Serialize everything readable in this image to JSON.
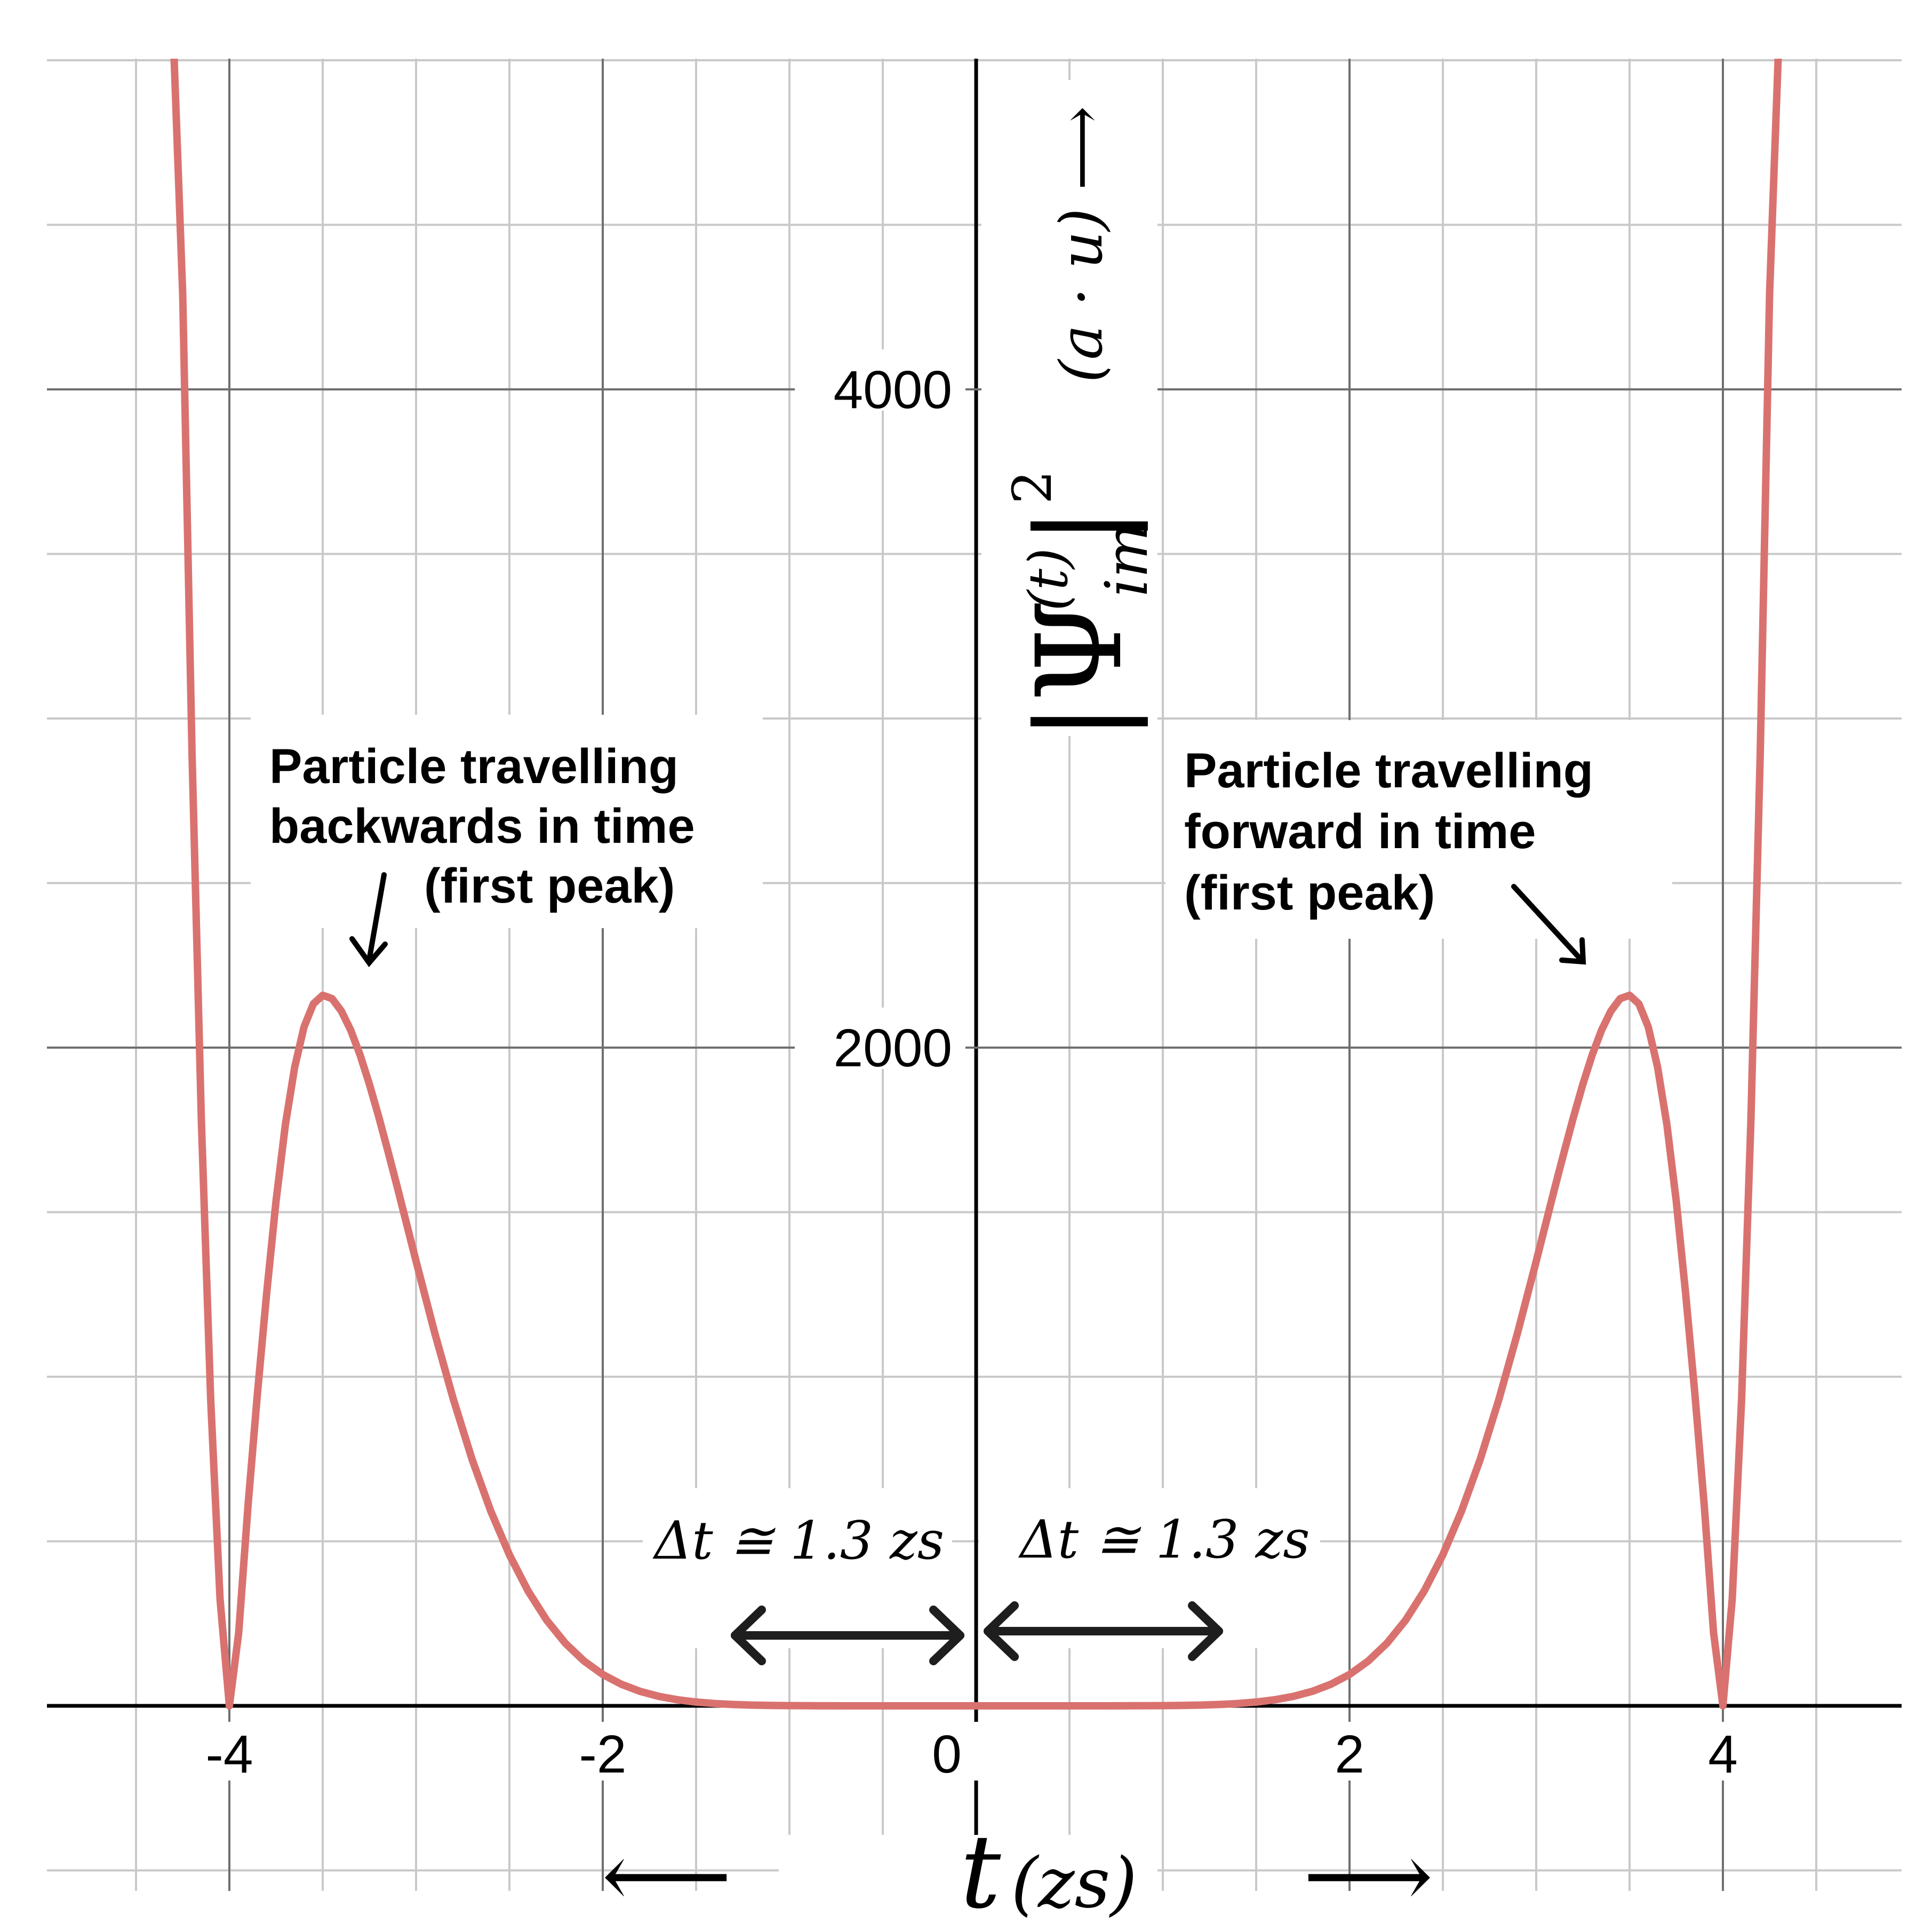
{
  "chart_data": {
    "type": "line",
    "xlim": [
      -5,
      5
    ],
    "ylim": [
      0,
      5000
    ],
    "grid": true,
    "x_ticks": [
      {
        "value": -4,
        "label": "-4"
      },
      {
        "value": -2,
        "label": "-2"
      },
      {
        "value": 0,
        "label": "0"
      },
      {
        "value": 2,
        "label": "2"
      },
      {
        "value": 4,
        "label": "4"
      }
    ],
    "y_ticks": [
      {
        "value": 2000,
        "label": "2000"
      },
      {
        "value": 4000,
        "label": "4000"
      }
    ],
    "xlabel": {
      "var": "t",
      "unit": "(zs)"
    },
    "ylabel": {
      "main": "|Ψ",
      "sub": "im",
      "sup": "(t)",
      "close": "|",
      "pow": "2",
      "unit": "(a · u)",
      "arrow": "⟶"
    },
    "series": [
      {
        "color": "#d9726f",
        "x": [
          -4.3,
          -4.25,
          -4.2,
          -4.15,
          -4.1,
          -4.05,
          -4.0,
          -3.95,
          -3.9,
          -3.85,
          -3.8,
          -3.75,
          -3.7,
          -3.65,
          -3.6,
          -3.55,
          -3.5,
          -3.45,
          -3.4,
          -3.35,
          -3.3,
          -3.25,
          -3.2,
          -3.15,
          -3.1,
          -3.0,
          -2.9,
          -2.8,
          -2.7,
          -2.6,
          -2.5,
          -2.4,
          -2.3,
          -2.2,
          -2.1,
          -2.0,
          -1.9,
          -1.8,
          -1.7,
          -1.6,
          -1.5,
          -1.4,
          -1.3,
          -1.2,
          -1.1,
          -1.0,
          -0.9,
          -0.8,
          -0.7,
          -0.6,
          -0.5,
          -0.4,
          -0.3,
          -0.2,
          -0.1,
          0.0,
          0.1,
          0.2,
          0.3,
          0.4,
          0.5,
          0.6,
          0.7,
          0.8,
          0.9,
          1.0,
          1.1,
          1.2,
          1.3,
          1.4,
          1.5,
          1.6,
          1.7,
          1.8,
          1.9,
          2.0,
          2.1,
          2.2,
          2.3,
          2.4,
          2.5,
          2.6,
          2.7,
          2.8,
          2.9,
          3.0,
          3.1,
          3.15,
          3.2,
          3.25,
          3.3,
          3.35,
          3.4,
          3.45,
          3.5,
          3.55,
          3.6,
          3.65,
          3.7,
          3.75,
          3.8,
          3.85,
          3.9,
          3.95,
          4.0,
          4.05,
          4.1,
          4.15,
          4.2,
          4.25,
          4.3
        ],
        "y": [
          5960,
          4290,
          2895,
          1779,
          930,
          325,
          0,
          222,
          609,
          947,
          1255,
          1534,
          1766,
          1941,
          2063,
          2133,
          2159,
          2149,
          2111,
          2053,
          1978,
          1889,
          1790,
          1684,
          1575,
          1351,
          1133,
          931,
          749,
          592,
          459,
          349,
          260,
          190,
          136,
          95.3,
          65.4,
          43.9,
          28.8,
          18.4,
          11.5,
          6.93,
          4.04,
          2.26,
          1.21,
          0.61,
          0.29,
          0.13,
          0.05,
          0.02,
          0.01,
          0.0,
          0.0,
          0.0,
          0.0,
          0.0,
          0.0,
          0.0,
          0.0,
          0.0,
          0.01,
          0.02,
          0.05,
          0.13,
          0.29,
          0.61,
          1.21,
          2.26,
          4.04,
          6.93,
          11.5,
          18.4,
          28.8,
          43.9,
          65.4,
          95.3,
          136,
          190,
          260,
          349,
          459,
          592,
          749,
          931,
          1133,
          1351,
          1575,
          1684,
          1790,
          1889,
          1978,
          2053,
          2111,
          2149,
          2159,
          2133,
          2063,
          1941,
          1766,
          1534,
          1255,
          947,
          609,
          222,
          0,
          325,
          930,
          1779,
          2895,
          4290,
          5960
        ]
      }
    ],
    "annotations": {
      "left_peak": [
        "Particle travelling",
        "backwards in time",
        "(first peak)"
      ],
      "right_peak": [
        "Particle travelling",
        "forward in time",
        "(first peak)"
      ],
      "interval_left": "Δt ≅ 1.3 zs",
      "interval_right": "Δt ≅ 1.3 zs",
      "bottom_left_arrow": "⟵",
      "bottom_right_arrow": "⟶"
    }
  }
}
